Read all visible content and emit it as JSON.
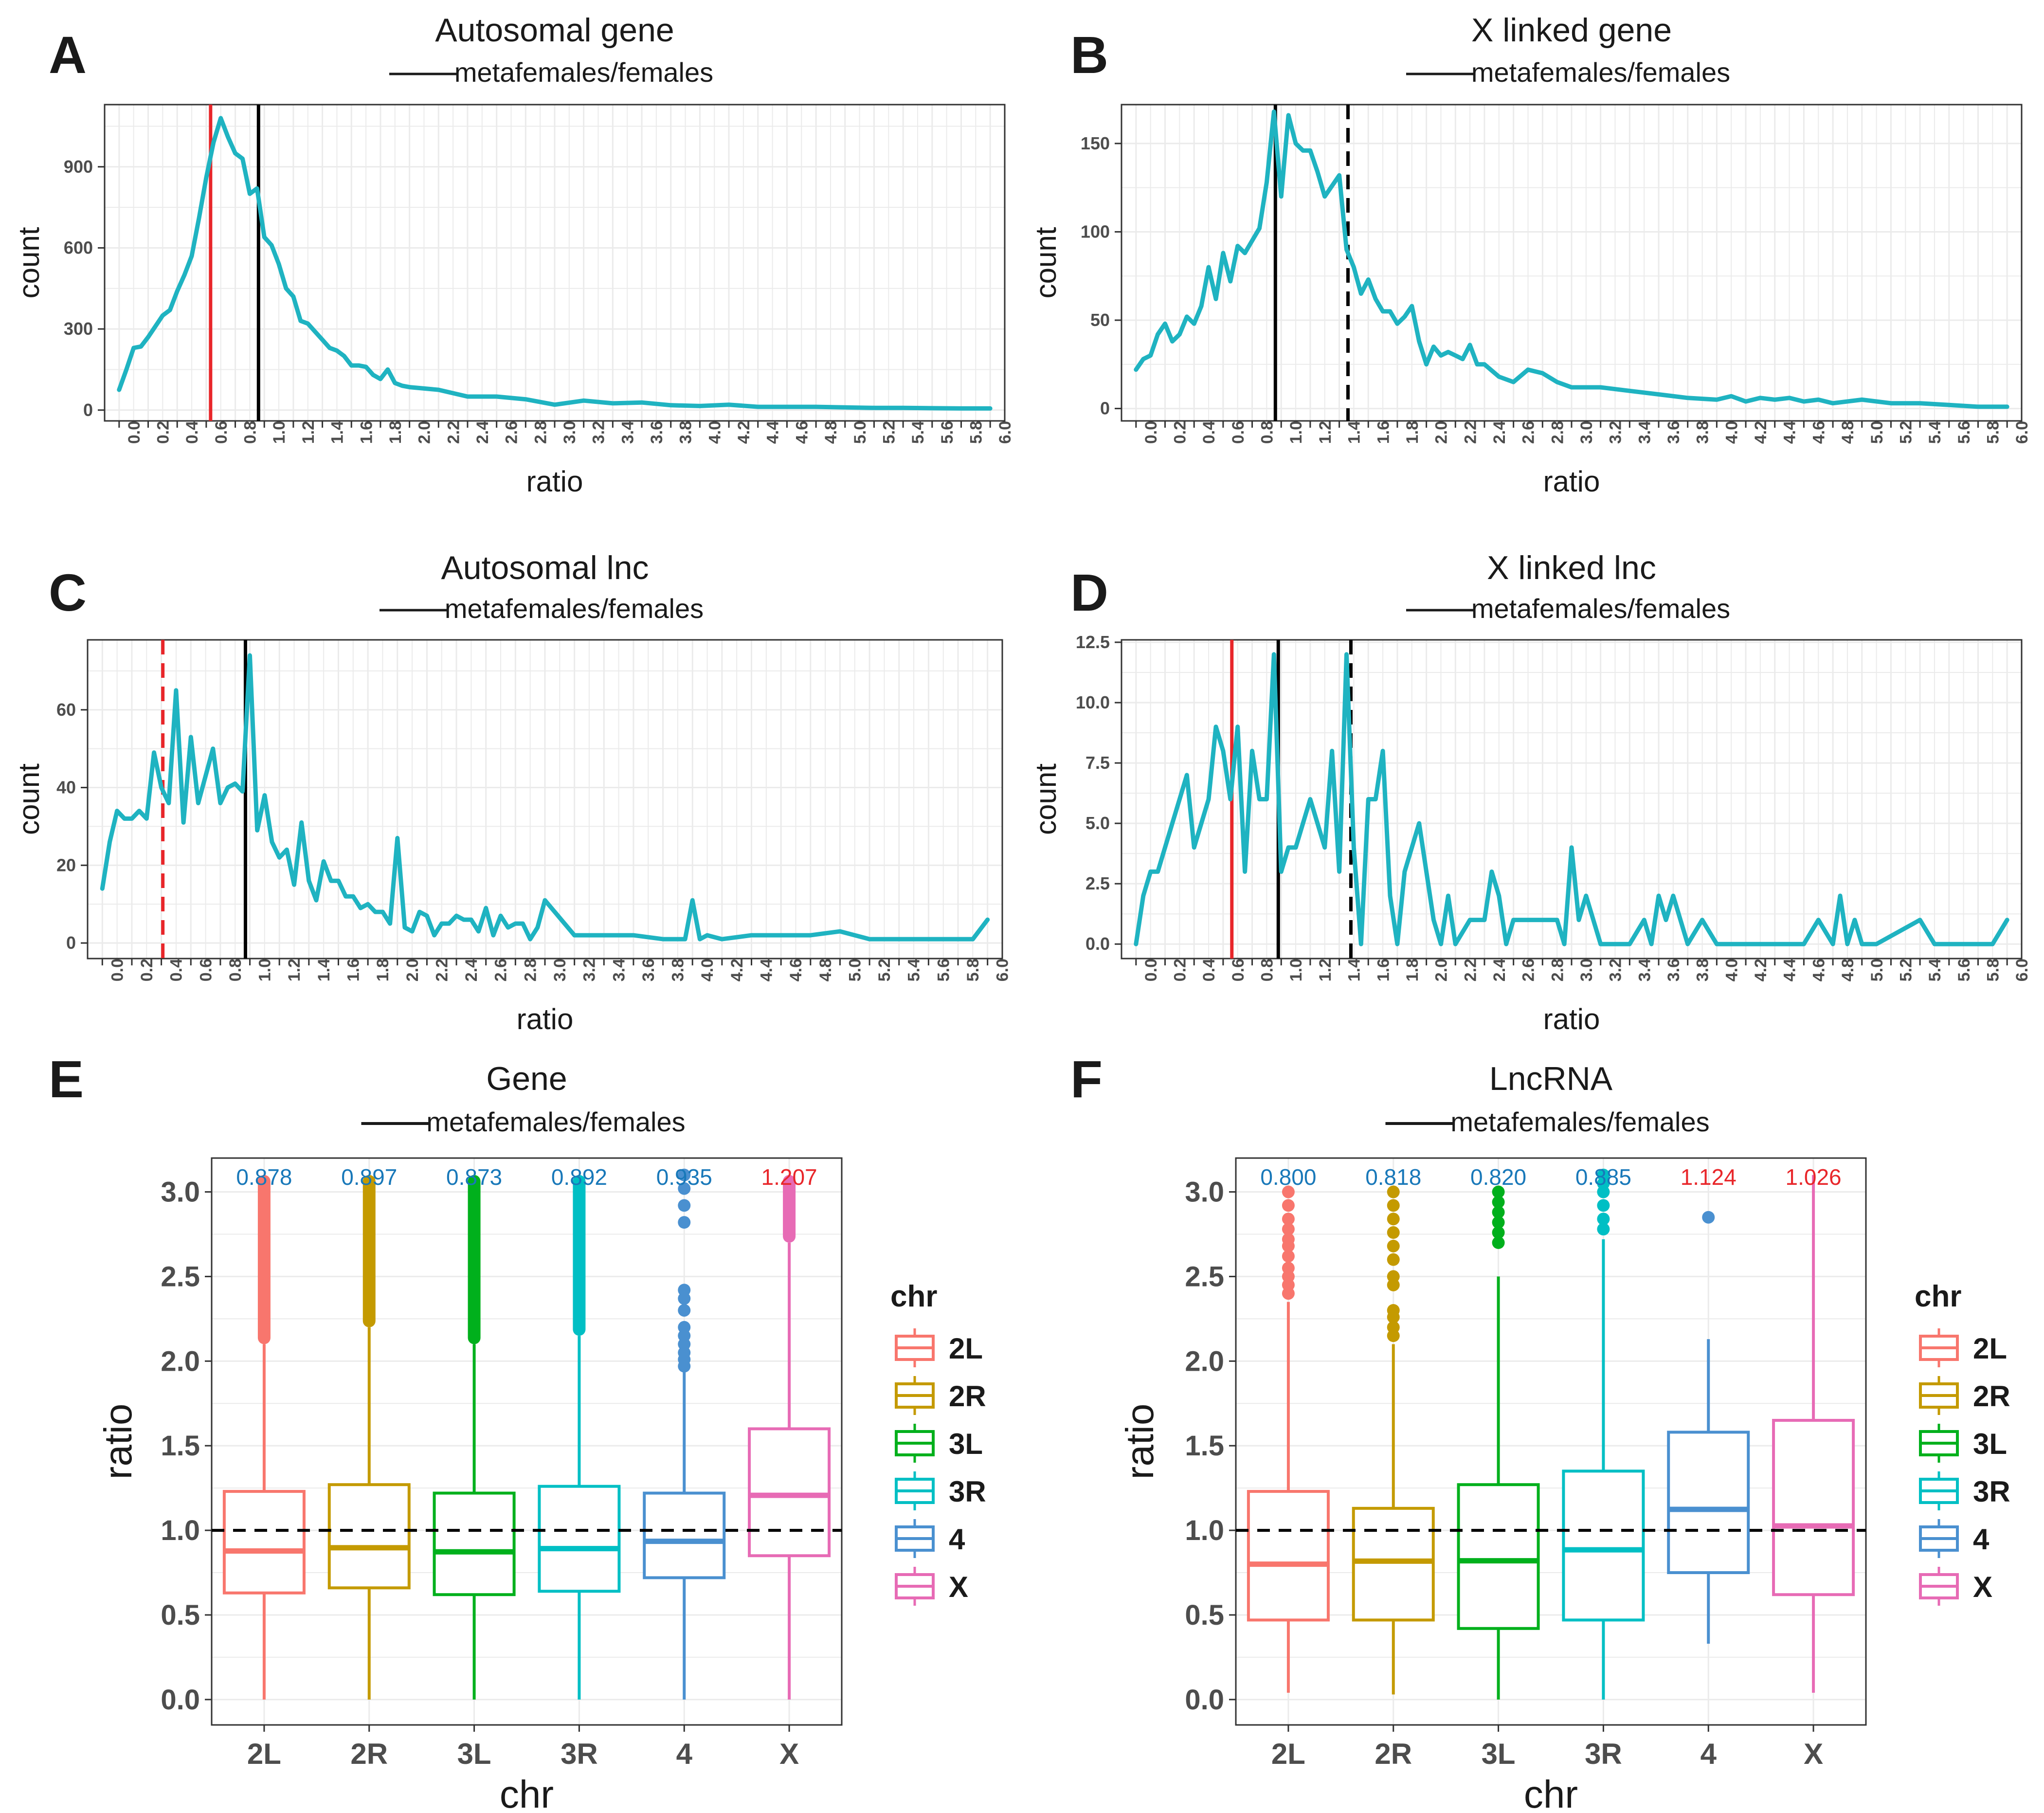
{
  "subtitle_text": "metafemales/females",
  "ratio_ticks": [
    "0.0",
    "0.2",
    "0.4",
    "0.6",
    "0.8",
    "1.0",
    "1.2",
    "1.4",
    "1.6",
    "1.8",
    "2.0",
    "2.2",
    "2.4",
    "2.6",
    "2.8",
    "3.0",
    "3.2",
    "3.4",
    "3.6",
    "3.8",
    "4.0",
    "4.2",
    "4.4",
    "4.6",
    "4.8",
    "5.0",
    "5.2",
    "5.4",
    "5.6",
    "5.8",
    "6.0"
  ],
  "colors": {
    "line": "#1FB3C1",
    "red": "#E8262A",
    "black": "#000000",
    "label_blue": "#1878B9",
    "label_red": "#E8394B",
    "chr": {
      "2L": "#F8766D",
      "2R": "#C49A00",
      "3L": "#00B01C",
      "3R": "#00BFC4",
      "4": "#4A90D0",
      "X": "#E76BB5"
    }
  },
  "chart_data": [
    {
      "panel": "A",
      "type": "line",
      "title": "Autosomal gene",
      "subtitle": "metafemales/females",
      "xlabel": "ratio",
      "ylabel": "count",
      "xlim": [
        -0.1,
        6.1
      ],
      "ylim": [
        -40,
        1130
      ],
      "yticks": [
        0,
        300,
        600,
        900
      ],
      "vlines": [
        {
          "x": 0.63,
          "color": "red",
          "dash": false
        },
        {
          "x": 0.96,
          "color": "black",
          "dash": false
        }
      ],
      "x": [
        0,
        0.05,
        0.1,
        0.15,
        0.2,
        0.25,
        0.3,
        0.35,
        0.4,
        0.45,
        0.5,
        0.55,
        0.6,
        0.65,
        0.7,
        0.75,
        0.8,
        0.85,
        0.9,
        0.95,
        1.0,
        1.05,
        1.1,
        1.15,
        1.2,
        1.25,
        1.3,
        1.35,
        1.4,
        1.45,
        1.5,
        1.55,
        1.6,
        1.65,
        1.7,
        1.75,
        1.8,
        1.85,
        1.9,
        1.95,
        2.0,
        2.2,
        2.4,
        2.6,
        2.8,
        3.0,
        3.2,
        3.4,
        3.6,
        3.8,
        4.0,
        4.2,
        4.4,
        4.6,
        4.8,
        5.0,
        5.2,
        5.4,
        5.6,
        5.8,
        6.0
      ],
      "values": [
        75,
        150,
        230,
        235,
        270,
        310,
        350,
        370,
        440,
        500,
        570,
        710,
        860,
        990,
        1080,
        1010,
        950,
        930,
        800,
        820,
        640,
        610,
        540,
        450,
        420,
        330,
        320,
        290,
        260,
        230,
        220,
        200,
        165,
        165,
        160,
        130,
        115,
        150,
        100,
        90,
        85,
        75,
        50,
        50,
        40,
        20,
        35,
        25,
        28,
        18,
        15,
        20,
        12,
        12,
        12,
        10,
        8,
        8,
        7,
        6,
        6
      ]
    },
    {
      "panel": "B",
      "type": "line",
      "title": "X linked gene",
      "subtitle": "metafemales/females",
      "xlabel": "ratio",
      "ylabel": "count",
      "xlim": [
        -0.1,
        6.1
      ],
      "ylim": [
        -7,
        172
      ],
      "yticks": [
        0,
        50,
        100,
        150
      ],
      "vlines": [
        {
          "x": 0.96,
          "color": "black",
          "dash": false
        },
        {
          "x": 1.46,
          "color": "black",
          "dash": true
        }
      ],
      "x": [
        0,
        0.05,
        0.1,
        0.15,
        0.2,
        0.25,
        0.3,
        0.35,
        0.4,
        0.45,
        0.5,
        0.55,
        0.6,
        0.65,
        0.7,
        0.75,
        0.8,
        0.85,
        0.9,
        0.95,
        1.0,
        1.05,
        1.1,
        1.15,
        1.2,
        1.25,
        1.3,
        1.35,
        1.4,
        1.45,
        1.5,
        1.55,
        1.6,
        1.65,
        1.7,
        1.75,
        1.8,
        1.85,
        1.9,
        1.95,
        2.0,
        2.05,
        2.1,
        2.15,
        2.2,
        2.25,
        2.3,
        2.35,
        2.4,
        2.5,
        2.6,
        2.7,
        2.8,
        2.9,
        3.0,
        3.2,
        3.4,
        3.6,
        3.8,
        4.0,
        4.1,
        4.2,
        4.3,
        4.4,
        4.5,
        4.6,
        4.7,
        4.8,
        5.0,
        5.2,
        5.4,
        5.6,
        5.8,
        6.0
      ],
      "values": [
        22,
        28,
        30,
        42,
        48,
        38,
        42,
        52,
        48,
        58,
        80,
        62,
        88,
        72,
        92,
        88,
        95,
        102,
        128,
        168,
        120,
        166,
        150,
        146,
        146,
        134,
        120,
        126,
        132,
        90,
        80,
        65,
        73,
        62,
        55,
        55,
        48,
        52,
        58,
        38,
        25,
        35,
        30,
        32,
        30,
        28,
        36,
        25,
        25,
        18,
        15,
        22,
        20,
        15,
        12,
        12,
        10,
        8,
        6,
        5,
        7,
        4,
        6,
        5,
        6,
        4,
        5,
        3,
        5,
        3,
        3,
        2,
        1,
        1
      ]
    },
    {
      "panel": "C",
      "type": "line",
      "title": "Autosomal lnc",
      "subtitle": "metafemales/females",
      "xlabel": "ratio",
      "ylabel": "count",
      "xlim": [
        -0.1,
        6.1
      ],
      "ylim": [
        -4,
        78
      ],
      "yticks": [
        0,
        20,
        40,
        60
      ],
      "vlines": [
        {
          "x": 0.41,
          "color": "red",
          "dash": true
        },
        {
          "x": 0.97,
          "color": "black",
          "dash": false
        }
      ],
      "x": [
        0,
        0.05,
        0.1,
        0.15,
        0.2,
        0.25,
        0.3,
        0.35,
        0.4,
        0.45,
        0.5,
        0.55,
        0.6,
        0.65,
        0.7,
        0.75,
        0.8,
        0.85,
        0.9,
        0.95,
        1.0,
        1.05,
        1.1,
        1.15,
        1.2,
        1.25,
        1.3,
        1.35,
        1.4,
        1.45,
        1.5,
        1.55,
        1.6,
        1.65,
        1.7,
        1.75,
        1.8,
        1.85,
        1.9,
        1.95,
        2.0,
        2.05,
        2.1,
        2.15,
        2.2,
        2.25,
        2.3,
        2.35,
        2.4,
        2.45,
        2.5,
        2.55,
        2.6,
        2.65,
        2.7,
        2.75,
        2.8,
        2.85,
        2.9,
        2.95,
        3.0,
        3.2,
        3.4,
        3.6,
        3.8,
        3.9,
        3.95,
        4.0,
        4.05,
        4.1,
        4.2,
        4.4,
        4.6,
        4.8,
        5.0,
        5.2,
        5.4,
        5.6,
        5.8,
        5.9,
        6.0
      ],
      "values": [
        14,
        26,
        34,
        32,
        32,
        34,
        32,
        49,
        40,
        36,
        65,
        31,
        53,
        36,
        43,
        50,
        36,
        40,
        41,
        39,
        74,
        29,
        38,
        26,
        22,
        24,
        15,
        31,
        16,
        11,
        21,
        16,
        16,
        12,
        12,
        9,
        10,
        8,
        8,
        5,
        27,
        4,
        3,
        8,
        7,
        2,
        5,
        5,
        7,
        6,
        6,
        3,
        9,
        2,
        7,
        4,
        5,
        5,
        1,
        4,
        11,
        2,
        2,
        2,
        1,
        1,
        1,
        11,
        1,
        2,
        1,
        2,
        2,
        2,
        3,
        1,
        1,
        1,
        1,
        1,
        6
      ]
    },
    {
      "panel": "D",
      "type": "line",
      "title": "X linked lnc",
      "subtitle": "metafemales/females",
      "xlabel": "ratio",
      "ylabel": "count",
      "xlim": [
        -0.1,
        6.1
      ],
      "ylim": [
        -0.6,
        12.6
      ],
      "yticks": [
        0.0,
        2.5,
        5.0,
        7.5,
        10.0,
        12.5
      ],
      "vlines": [
        {
          "x": 0.66,
          "color": "red",
          "dash": false
        },
        {
          "x": 0.98,
          "color": "black",
          "dash": false
        },
        {
          "x": 1.48,
          "color": "black",
          "dash": true
        }
      ],
      "x": [
        0,
        0.05,
        0.1,
        0.15,
        0.2,
        0.25,
        0.3,
        0.35,
        0.4,
        0.45,
        0.5,
        0.55,
        0.6,
        0.65,
        0.7,
        0.75,
        0.8,
        0.85,
        0.9,
        0.95,
        1.0,
        1.05,
        1.1,
        1.15,
        1.2,
        1.25,
        1.3,
        1.35,
        1.4,
        1.45,
        1.5,
        1.55,
        1.6,
        1.65,
        1.7,
        1.75,
        1.8,
        1.85,
        1.9,
        1.95,
        2.0,
        2.05,
        2.1,
        2.15,
        2.2,
        2.3,
        2.4,
        2.45,
        2.5,
        2.55,
        2.6,
        2.8,
        2.9,
        2.95,
        3.0,
        3.05,
        3.1,
        3.2,
        3.4,
        3.5,
        3.55,
        3.6,
        3.65,
        3.7,
        3.8,
        3.9,
        4.0,
        4.5,
        4.6,
        4.7,
        4.8,
        4.85,
        4.9,
        4.95,
        5.0,
        5.1,
        5.4,
        5.5,
        5.9,
        6.0
      ],
      "values": [
        0,
        2,
        3,
        3,
        4,
        5,
        6,
        7,
        4,
        5,
        6,
        9,
        8,
        6,
        9,
        3,
        8,
        6,
        6,
        12,
        3,
        4,
        4,
        5,
        6,
        5,
        4,
        8,
        3,
        12,
        4,
        0,
        6,
        6,
        8,
        2,
        0,
        3,
        4,
        5,
        3,
        1,
        0,
        2,
        0,
        1,
        1,
        3,
        2,
        0,
        1,
        1,
        1,
        0,
        4,
        1,
        2,
        0,
        0,
        1,
        0,
        2,
        1,
        2,
        0,
        1,
        0,
        0,
        0,
        1,
        0,
        2,
        0,
        1,
        0,
        0,
        1,
        0,
        0,
        1
      ]
    },
    {
      "panel": "E",
      "type": "box",
      "title": "Gene",
      "subtitle": "metafemales/females",
      "xlabel": "chr",
      "ylabel": "ratio",
      "categories": [
        "2L",
        "2R",
        "3L",
        "3R",
        "4",
        "X"
      ],
      "ylim": [
        -0.15,
        3.2
      ],
      "yticks": [
        0.0,
        0.5,
        1.0,
        1.5,
        2.0,
        2.5,
        3.0
      ],
      "hline": 1.0,
      "medians_labels": [
        "0.878",
        "0.897",
        "0.873",
        "0.892",
        "0.935",
        "1.207"
      ],
      "label_colors": [
        "blue",
        "blue",
        "blue",
        "blue",
        "blue",
        "red"
      ],
      "boxes": [
        {
          "min": 0.0,
          "q1": 0.63,
          "median": 0.878,
          "q3": 1.23,
          "max": 2.1,
          "outliers_range": [
            2.1,
            3.1
          ]
        },
        {
          "min": 0.0,
          "q1": 0.66,
          "median": 0.897,
          "q3": 1.27,
          "max": 2.2,
          "outliers_range": [
            2.2,
            3.1
          ]
        },
        {
          "min": 0.0,
          "q1": 0.62,
          "median": 0.873,
          "q3": 1.22,
          "max": 2.1,
          "outliers_range": [
            2.1,
            3.1
          ]
        },
        {
          "min": 0.0,
          "q1": 0.64,
          "median": 0.892,
          "q3": 1.26,
          "max": 2.15,
          "outliers_range": [
            2.15,
            3.1
          ]
        },
        {
          "min": 0.0,
          "q1": 0.72,
          "median": 0.935,
          "q3": 1.22,
          "max": 1.95,
          "outliers": [
            1.97,
            2.01,
            2.05,
            2.1,
            2.15,
            2.2,
            2.3,
            2.37,
            2.42,
            2.82,
            2.92,
            3.02,
            3.1
          ]
        },
        {
          "min": 0.0,
          "q1": 0.85,
          "median": 1.207,
          "q3": 1.6,
          "max": 2.7,
          "outliers_range": [
            2.7,
            3.1
          ]
        }
      ]
    },
    {
      "panel": "F",
      "type": "box",
      "title": "LncRNA",
      "subtitle": "metafemales/females",
      "xlabel": "chr",
      "ylabel": "ratio",
      "categories": [
        "2L",
        "2R",
        "3L",
        "3R",
        "4",
        "X"
      ],
      "ylim": [
        -0.15,
        3.2
      ],
      "yticks": [
        0.0,
        0.5,
        1.0,
        1.5,
        2.0,
        2.5,
        3.0
      ],
      "hline": 1.0,
      "medians_labels": [
        "0.800",
        "0.818",
        "0.820",
        "0.885",
        "1.124",
        "1.026"
      ],
      "label_colors": [
        "blue",
        "blue",
        "blue",
        "blue",
        "red",
        "red"
      ],
      "boxes": [
        {
          "min": 0.04,
          "q1": 0.47,
          "median": 0.8,
          "q3": 1.23,
          "max": 2.35,
          "outliers": [
            2.4,
            2.45,
            2.5,
            2.55,
            2.62,
            2.68,
            2.72,
            2.78,
            2.84,
            2.92,
            3.0
          ]
        },
        {
          "min": 0.03,
          "q1": 0.47,
          "median": 0.818,
          "q3": 1.13,
          "max": 2.1,
          "outliers": [
            2.15,
            2.2,
            2.26,
            2.3,
            2.45,
            2.5,
            2.6,
            2.68,
            2.76,
            2.84,
            2.92,
            3.0
          ]
        },
        {
          "min": 0.0,
          "q1": 0.42,
          "median": 0.82,
          "q3": 1.27,
          "max": 2.5,
          "outliers": [
            2.7,
            2.76,
            2.82,
            2.88,
            2.94,
            3.0
          ]
        },
        {
          "min": 0.0,
          "q1": 0.47,
          "median": 0.885,
          "q3": 1.35,
          "max": 2.72,
          "outliers": [
            2.78,
            2.84,
            2.92,
            3.0,
            3.05,
            3.1
          ]
        },
        {
          "min": 0.33,
          "q1": 0.75,
          "median": 1.124,
          "q3": 1.58,
          "max": 2.13,
          "outliers": [
            2.85
          ]
        },
        {
          "min": 0.04,
          "q1": 0.62,
          "median": 1.026,
          "q3": 1.65,
          "max": 3.1,
          "outliers": []
        }
      ],
      "legend": {
        "title": "chr",
        "entries": [
          "2L",
          "2R",
          "3L",
          "3R",
          "4",
          "X"
        ]
      }
    }
  ]
}
